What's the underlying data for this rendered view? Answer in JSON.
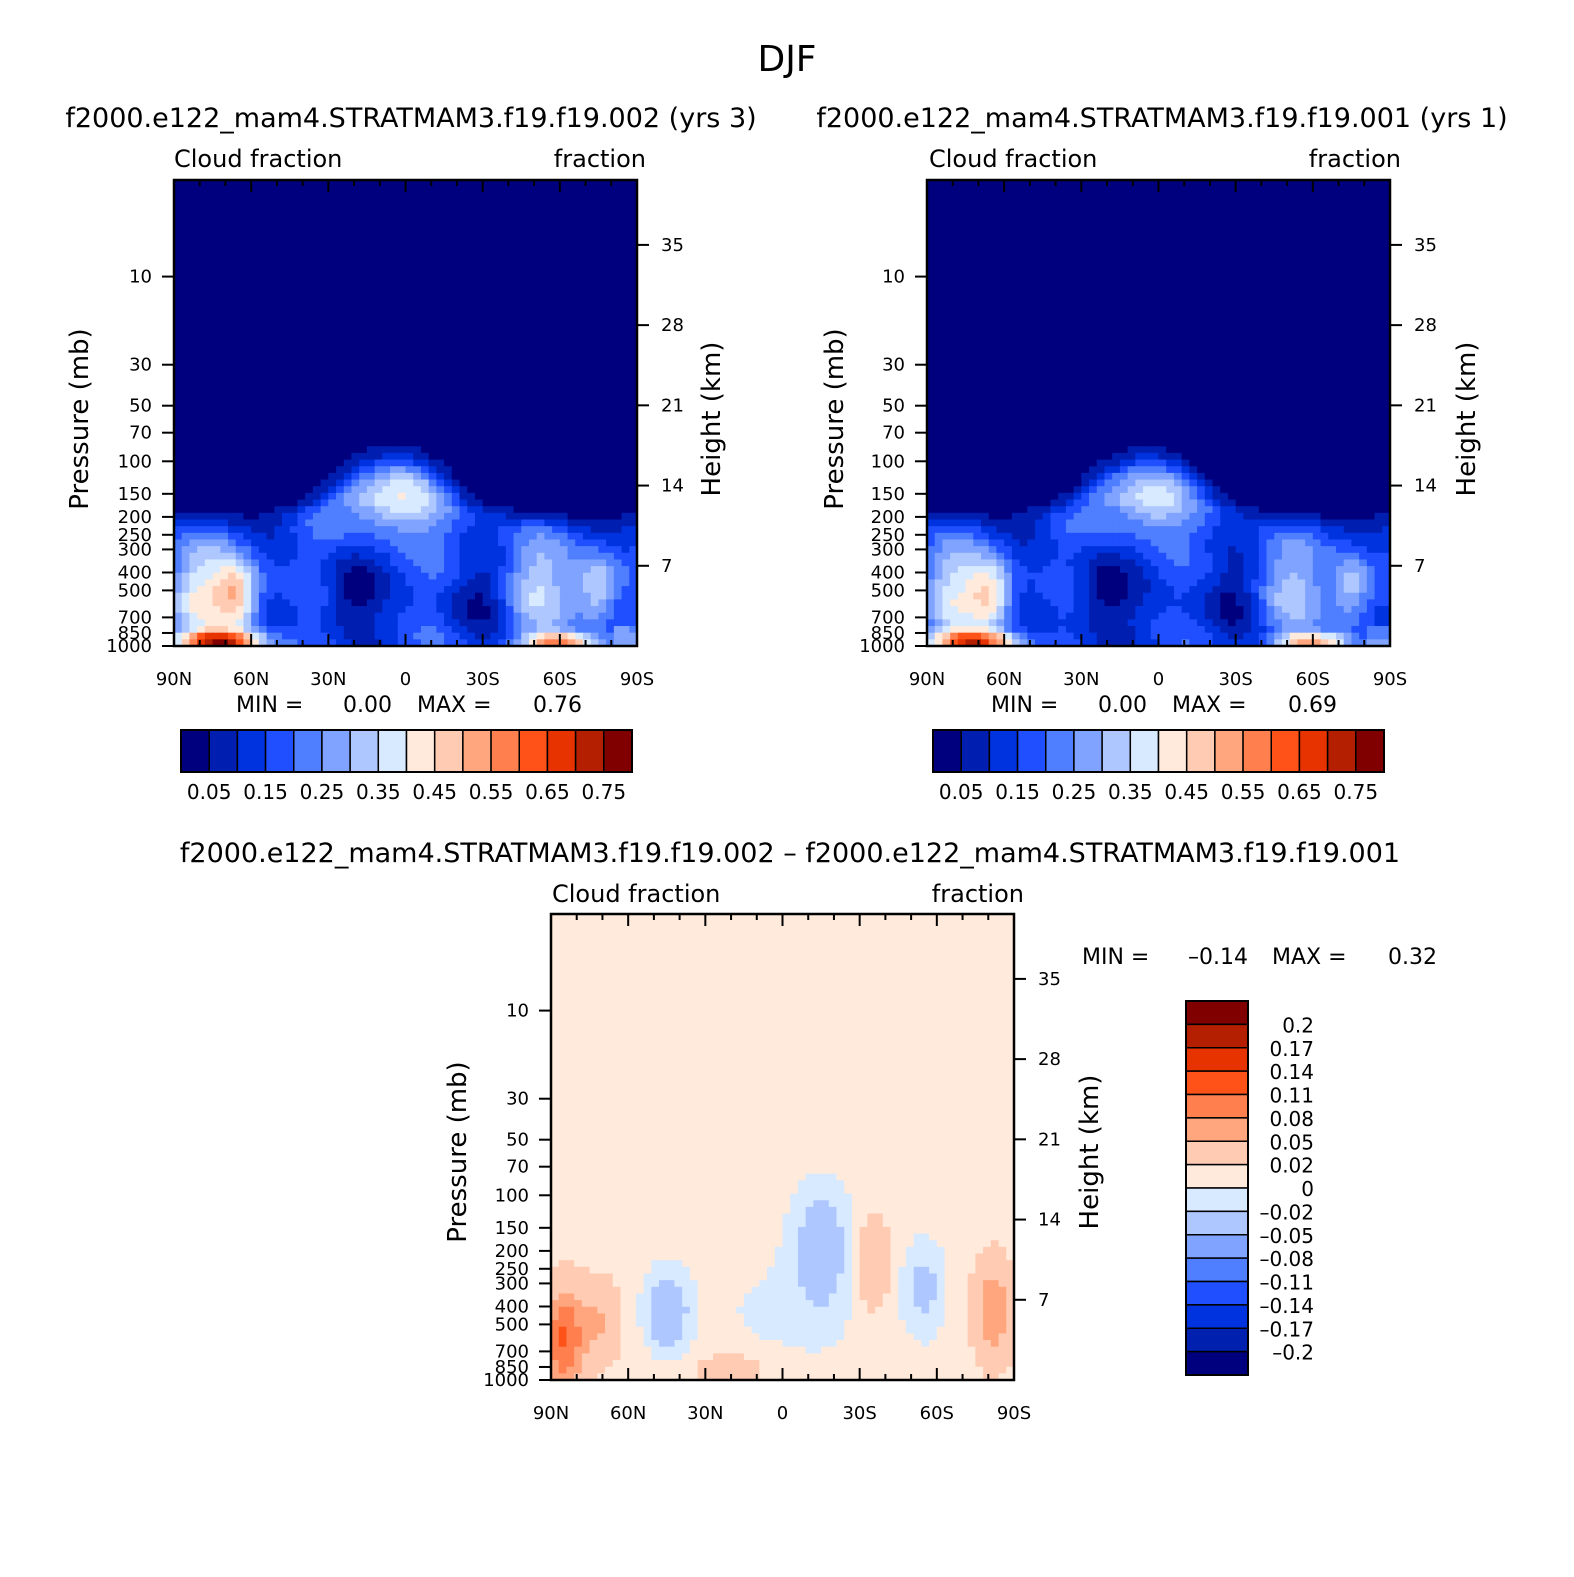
{
  "figure_title": "DJF",
  "colors": {
    "abs_palette": [
      "#00007f",
      "#001fb0",
      "#0033e0",
      "#1f4fff",
      "#4f7fff",
      "#7fa3ff",
      "#aec8ff",
      "#d8eaff",
      "#ffeadb",
      "#ffcbb3",
      "#ffa67e",
      "#ff7f4f",
      "#ff5219",
      "#e63300",
      "#b31f00",
      "#800000"
    ],
    "diff_palette": [
      "#00007f",
      "#0020b0",
      "#0033e0",
      "#1f4fff",
      "#4f7fff",
      "#7fa3ff",
      "#aec8ff",
      "#d8eaff",
      "#ffeadb",
      "#ffcbb3",
      "#ffa67e",
      "#ff7f4f",
      "#ff5219",
      "#e63300",
      "#b31f00",
      "#800000"
    ],
    "frame": "#000000"
  },
  "chart_data": [
    {
      "id": "case1",
      "type": "contour",
      "title": "f2000.e122_mam4.STRATMAM3.f19.f19.002 (yrs 3)",
      "left_string": "Cloud fraction",
      "right_string": "fraction",
      "xlabel": "",
      "ylabel": "Pressure (mb)",
      "ylabel_right": "Height (km)",
      "x_ticks": [
        "90N",
        "60N",
        "30N",
        "0",
        "30S",
        "60S",
        "90S"
      ],
      "y_ticks": [
        "10",
        "30",
        "50",
        "70",
        "100",
        "150",
        "200",
        "250",
        "300",
        "400",
        "500",
        "700",
        "850",
        "1000"
      ],
      "y_ticks_right": [
        "35",
        "28",
        "21",
        "14",
        "7"
      ],
      "xlim": [
        -90,
        90
      ],
      "ylim_mb": [
        1000,
        3
      ],
      "min_label": "MIN =",
      "min_value": "0.00",
      "max_label": "MAX =",
      "max_value": "0.76",
      "colorbar_labels": [
        "0.05",
        "0.15",
        "0.25",
        "0.35",
        "0.45",
        "0.55",
        "0.65",
        "0.75"
      ],
      "colorbar_levels": [
        0,
        0.05,
        0.1,
        0.15,
        0.2,
        0.25,
        0.3,
        0.35,
        0.4,
        0.45,
        0.5,
        0.55,
        0.6,
        0.65,
        0.7,
        0.75
      ]
    },
    {
      "id": "case2",
      "type": "contour",
      "title": "f2000.e122_mam4.STRATMAM3.f19.f19.001 (yrs 1)",
      "left_string": "Cloud fraction",
      "right_string": "fraction",
      "xlabel": "",
      "ylabel": "Pressure (mb)",
      "ylabel_right": "Height (km)",
      "x_ticks": [
        "90N",
        "60N",
        "30N",
        "0",
        "30S",
        "60S",
        "90S"
      ],
      "y_ticks": [
        "10",
        "30",
        "50",
        "70",
        "100",
        "150",
        "200",
        "250",
        "300",
        "400",
        "500",
        "700",
        "850",
        "1000"
      ],
      "y_ticks_right": [
        "35",
        "28",
        "21",
        "14",
        "7"
      ],
      "xlim": [
        -90,
        90
      ],
      "ylim_mb": [
        1000,
        3
      ],
      "min_label": "MIN =",
      "min_value": "0.00",
      "max_label": "MAX =",
      "max_value": "0.69",
      "colorbar_labels": [
        "0.05",
        "0.15",
        "0.25",
        "0.35",
        "0.45",
        "0.55",
        "0.65",
        "0.75"
      ],
      "colorbar_levels": [
        0,
        0.05,
        0.1,
        0.15,
        0.2,
        0.25,
        0.3,
        0.35,
        0.4,
        0.45,
        0.5,
        0.55,
        0.6,
        0.65,
        0.7,
        0.75
      ]
    },
    {
      "id": "diff",
      "type": "contour",
      "title": "f2000.e122_mam4.STRATMAM3.f19.f19.002 – f2000.e122_mam4.STRATMAM3.f19.f19.001",
      "left_string": "Cloud fraction",
      "right_string": "fraction",
      "xlabel": "",
      "ylabel": "Pressure (mb)",
      "ylabel_right": "Height (km)",
      "x_ticks": [
        "90N",
        "60N",
        "30N",
        "0",
        "30S",
        "60S",
        "90S"
      ],
      "y_ticks": [
        "10",
        "30",
        "50",
        "70",
        "100",
        "150",
        "200",
        "250",
        "300",
        "400",
        "500",
        "700",
        "850",
        "1000"
      ],
      "y_ticks_right": [
        "35",
        "28",
        "21",
        "14",
        "7"
      ],
      "xlim": [
        -90,
        90
      ],
      "ylim_mb": [
        1000,
        3
      ],
      "min_label": "MIN =",
      "min_value": "–0.14",
      "max_label": "MAX =",
      "max_value": "0.32",
      "colorbar_labels": [
        "0.2",
        "0.17",
        "0.14",
        "0.11",
        "0.08",
        "0.05",
        "0.02",
        "0",
        "–0.02",
        "–0.05",
        "–0.08",
        "–0.11",
        "–0.14",
        "–0.17",
        "–0.2"
      ],
      "colorbar_levels": [
        -0.2,
        -0.17,
        -0.14,
        -0.11,
        -0.08,
        -0.05,
        -0.02,
        0,
        0.02,
        0.05,
        0.08,
        0.11,
        0.14,
        0.17,
        0.2
      ]
    }
  ]
}
